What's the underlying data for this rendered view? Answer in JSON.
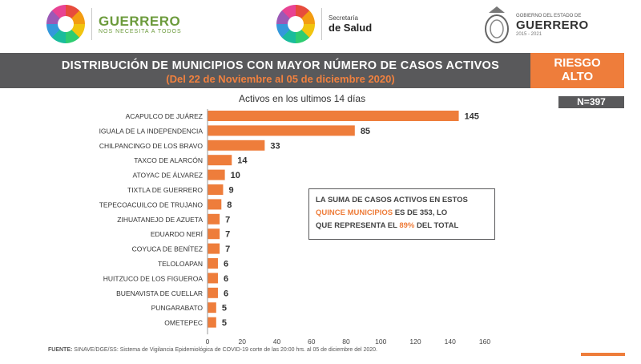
{
  "header": {
    "guerrero_logo": {
      "title": "GUERRERO",
      "subtitle": "NOS NECESITA A TODOS"
    },
    "salud_logo": {
      "line1": "Secretaría",
      "line2": "de Salud"
    },
    "gobierno_logo": {
      "small": "GOBIERNO DEL ESTADO DE",
      "big": "GUERRERO",
      "years": "2015 - 2021"
    }
  },
  "title": {
    "main": "DISTRIBUCIÓN DE MUNICIPIOS CON MAYOR NÚMERO DE  CASOS ACTIVOS",
    "sub": "(Del 22 de Noviembre al 05 de diciembre 2020)"
  },
  "risk": {
    "line1": "RIESGO",
    "line2": "ALTO"
  },
  "n_label": "N=397",
  "callout": {
    "part1": "LA SUMA DE CASOS ACTIVOS EN ESTOS",
    "highlight1": "QUINCE MUNICIPIOS",
    "part2": " ES DE 353, LO",
    "part3": "QUE REPRESENTA EL ",
    "highlight2": "89%",
    "part4": " DEL TOTAL"
  },
  "source": {
    "label": "FUENTE:",
    "text": " SINAVE/DGE/SS: Sistema de Vigilancia Epidemiológica de COVID-19 corte de las 20:00 hrs. al 05 de diciembre del 2020."
  },
  "chart_data": {
    "type": "bar",
    "orientation": "horizontal",
    "title": "Activos en los ultimos 14 días",
    "categories": [
      "ACAPULCO DE JUÁREZ",
      "IGUALA DE LA INDEPENDENCIA",
      "CHILPANCINGO DE LOS BRAVO",
      "TAXCO DE ALARCÓN",
      "ATOYAC DE ÁLVAREZ",
      "TIXTLA DE GUERRERO",
      "TEPECOACUILCO DE TRUJANO",
      "ZIHUATANEJO DE AZUETA",
      "EDUARDO NERÍ",
      "COYUCA DE BENÍTEZ",
      "TELOLOAPAN",
      "HUITZUCO DE LOS FIGUEROA",
      "BUENAVISTA DE CUELLAR",
      "PUNGARABATO",
      "OMETEPEC"
    ],
    "values": [
      145,
      85,
      33,
      14,
      10,
      9,
      8,
      7,
      7,
      7,
      6,
      6,
      6,
      5,
      5
    ],
    "xlim": [
      0,
      160
    ],
    "xticks": [
      0,
      20,
      40,
      60,
      80,
      100,
      120,
      140,
      160
    ],
    "bar_color": "#ee7d3b",
    "grid": false
  }
}
